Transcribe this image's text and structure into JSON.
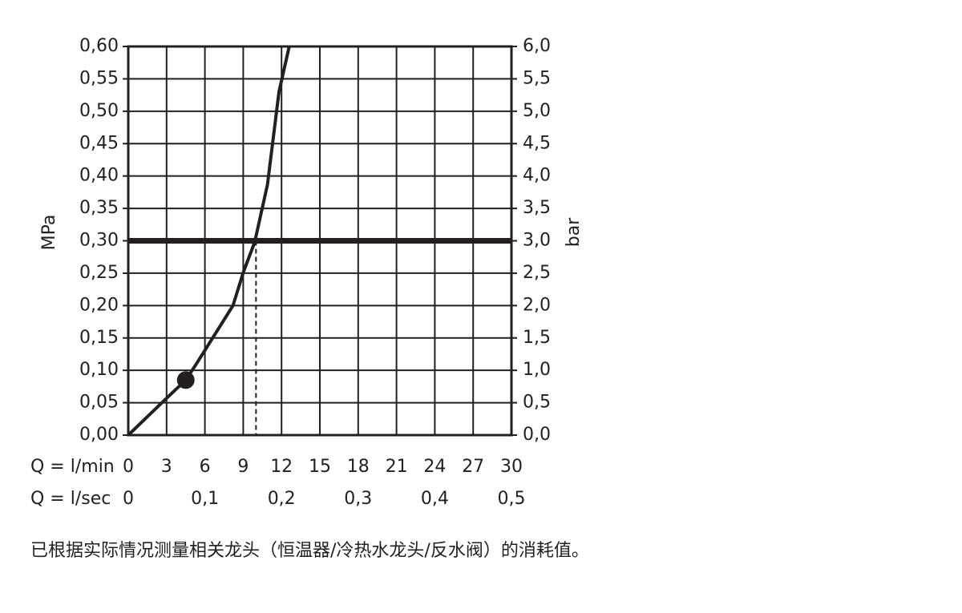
{
  "chart_data": {
    "type": "line",
    "x": [
      0,
      3,
      4.5,
      5.3,
      8.2,
      9,
      9.9,
      10.9,
      11.8,
      12.6
    ],
    "series": [
      {
        "color": "#231f20",
        "values": [
          0,
          0.057,
          0.085,
          0.109,
          0.2,
          0.251,
          0.298,
          0.387,
          0.53,
          0.6
        ]
      }
    ],
    "marker": {
      "x": 4.5,
      "y": 0.085
    },
    "hline": 0.3,
    "vline": 10,
    "xlim": [
      0,
      30
    ],
    "xticks": [
      0,
      3,
      6,
      9,
      12,
      15,
      18,
      21,
      24,
      27,
      30
    ],
    "x2lim": [
      0,
      0.5
    ],
    "x2ticks": [
      0,
      {
        "value": 0.1,
        "label": "0,1"
      },
      {
        "value": 0.2,
        "label": "0,2"
      },
      {
        "value": 0.3,
        "label": "0,3"
      },
      {
        "value": 0.4,
        "label": "0,4"
      },
      {
        "value": 0.5,
        "label": "0,5"
      }
    ],
    "ylim": [
      0,
      0.6
    ],
    "yticks": [
      {
        "value": 0,
        "label": "0,00"
      },
      {
        "value": 0.05,
        "label": "0,05"
      },
      {
        "value": 0.1,
        "label": "0,10"
      },
      {
        "value": 0.15,
        "label": "0,15"
      },
      {
        "value": 0.2,
        "label": "0,20"
      },
      {
        "value": 0.25,
        "label": "0,25"
      },
      {
        "value": 0.3,
        "label": "0,30"
      },
      {
        "value": 0.35,
        "label": "0,35"
      },
      {
        "value": 0.4,
        "label": "0,40"
      },
      {
        "value": 0.45,
        "label": "0,45"
      },
      {
        "value": 0.5,
        "label": "0,50"
      },
      {
        "value": 0.55,
        "label": "0,55"
      },
      {
        "value": 0.6,
        "label": "0,60"
      }
    ],
    "y2lim": [
      0,
      6
    ],
    "y2ticks": [
      {
        "value": 0,
        "label": "0,0"
      },
      {
        "value": 0.5,
        "label": "0,5"
      },
      {
        "value": 1,
        "label": "1,0"
      },
      {
        "value": 1.5,
        "label": "1,5"
      },
      {
        "value": 2,
        "label": "2,0"
      },
      {
        "value": 2.5,
        "label": "2,5"
      },
      {
        "value": 3,
        "label": "3,0"
      },
      {
        "value": 3.5,
        "label": "3,5"
      },
      {
        "value": 4,
        "label": "4,0"
      },
      {
        "value": 4.5,
        "label": "4,5"
      },
      {
        "value": 5,
        "label": "5,0"
      },
      {
        "value": 5.5,
        "label": "5,5"
      },
      {
        "value": 6,
        "label": "6,0"
      }
    ],
    "ylabel": "MPa",
    "y2label": "bar",
    "xlabel": "Q = l/min",
    "x2label": "Q = l/sec",
    "grid": true,
    "caption": "已根据实际情况测量相关龙头（恒温器/冷热水龙头/反水阀）的消耗值。"
  }
}
